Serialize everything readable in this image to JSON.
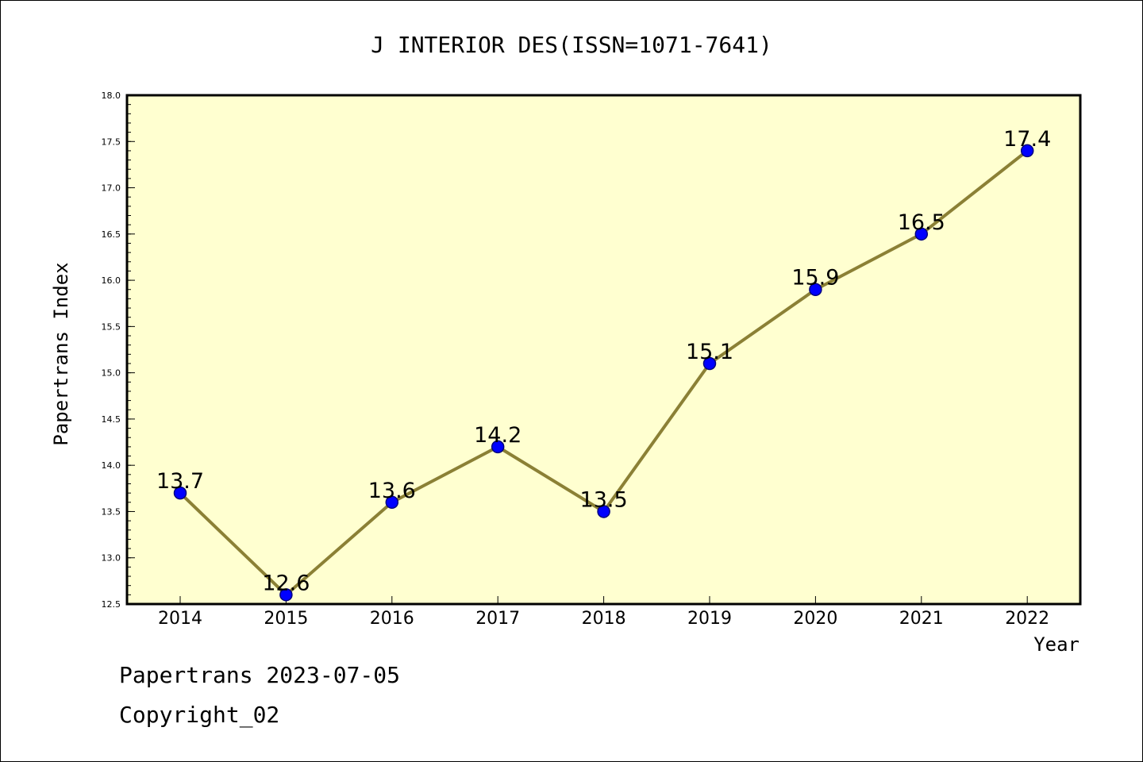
{
  "chart_data": {
    "type": "line",
    "title": "J INTERIOR DES(ISSN=1071-7641)",
    "xlabel": "Year",
    "ylabel": "Papertrans Index",
    "categories": [
      "2014",
      "2015",
      "2016",
      "2017",
      "2018",
      "2019",
      "2020",
      "2021",
      "2022"
    ],
    "values": [
      13.7,
      12.6,
      13.6,
      14.2,
      13.5,
      15.1,
      15.9,
      16.5,
      17.4
    ],
    "data_labels": [
      "13.7",
      "12.6",
      "13.6",
      "14.2",
      "13.5",
      "15.1",
      "15.9",
      "16.5",
      "17.4"
    ],
    "ylim": [
      12.5,
      18.0
    ],
    "yticks": [
      "12.5",
      "13.0",
      "13.5",
      "14.0",
      "14.5",
      "15.0",
      "15.5",
      "16.0",
      "16.5",
      "17.0",
      "17.5",
      "18.0"
    ],
    "grid": false,
    "legend": "none",
    "colors": {
      "plot_background": "#ffffd0",
      "line": "#8b8035",
      "marker": "#0000ff",
      "marker_edge": "#000080"
    }
  },
  "footer": {
    "line1": "Papertrans 2023-07-05",
    "line2": "Copyright_02"
  }
}
